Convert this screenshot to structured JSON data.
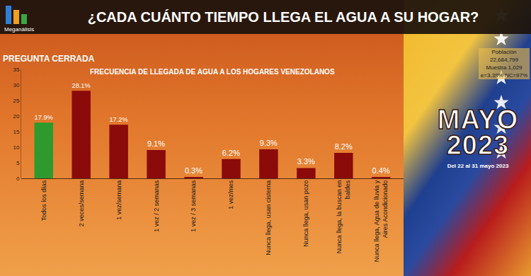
{
  "chart_data": {
    "type": "bar",
    "title": "¿CADA CUÁNTO TIEMPO LLEGA EL AGUA A SU HOGAR?",
    "subtitle": "FRECUENCIA DE LLEGADA DE AGUA A LOS HOGARES VENEZOLANOS",
    "categories": [
      "Todos los días",
      "2 veces/semana",
      "1 vez/semana",
      "1 vez / 2 semanas",
      "1 vez / 3 semanas",
      "1 vez/mes",
      "Nunca llega, usan cisterna",
      "Nunca llega, usan pozo",
      "Nunca llega, la buscan en baldes",
      "Nunca llega, Agua de lluvia y Aires Acondicionado"
    ],
    "values": [
      17.9,
      28.1,
      17.2,
      9.1,
      0.3,
      6.2,
      9.3,
      3.3,
      8.2,
      0.4
    ],
    "value_labels": [
      "17.9%",
      "28.1%",
      "17.2%",
      "9.1%",
      "0.3%",
      "6.2%",
      "9.3%",
      "3.3%",
      "8.2%",
      "0.4%"
    ],
    "colors": [
      "#2e9a2e",
      "#8b0a0a",
      "#8b0a0a",
      "#8b0a0a",
      "#8b0a0a",
      "#8b0a0a",
      "#8b0a0a",
      "#8b0a0a",
      "#8b0a0a",
      "#8b0a0a"
    ],
    "ylim": [
      0,
      35
    ],
    "yticks": [
      0,
      5,
      10,
      15,
      20,
      25,
      30,
      35
    ],
    "grid": false,
    "data_labels": true,
    "annotations": [
      "Meganálisis",
      "PREGUNTA CERRADA",
      "Población",
      "22,684,799",
      "Muestra 1,029",
      "e=3.38%  NC=97%",
      "MAYO",
      "2023",
      "Del 22 al 31 mayo 2023"
    ]
  }
}
